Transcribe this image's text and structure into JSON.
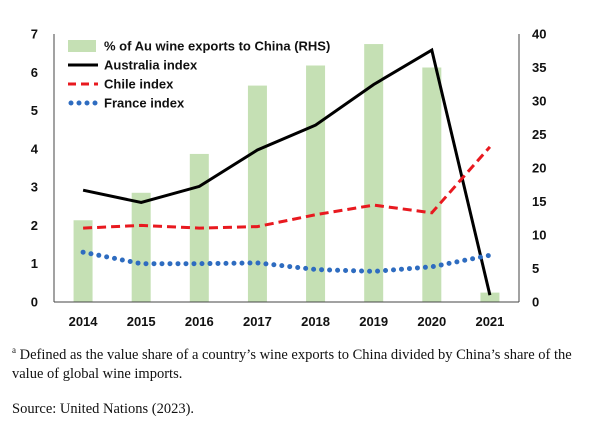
{
  "chart_data": {
    "type": "bar+line",
    "categories": [
      "2014",
      "2015",
      "2016",
      "2017",
      "2018",
      "2019",
      "2020",
      "2021"
    ],
    "left_axis": {
      "ylim": [
        0,
        7
      ],
      "ticks": [
        0,
        1,
        2,
        3,
        4,
        5,
        6,
        7
      ]
    },
    "right_axis": {
      "ylim": [
        0,
        40
      ],
      "ticks": [
        0,
        5,
        10,
        15,
        20,
        25,
        30,
        35,
        40
      ]
    },
    "bars": {
      "name": "% of Au wine exports to China (RHS)",
      "axis": "right",
      "color": "#c5e0b4",
      "values": [
        12.2,
        16.3,
        22.1,
        32.3,
        35.3,
        38.5,
        35.0,
        1.4
      ]
    },
    "series": [
      {
        "name": "Australia index",
        "axis": "left",
        "color": "#000000",
        "style": "solid",
        "values": [
          2.92,
          2.6,
          3.02,
          3.97,
          4.62,
          5.68,
          6.58,
          0.18
        ]
      },
      {
        "name": "Chile index",
        "axis": "left",
        "color": "#e8191f",
        "style": "dashed",
        "values": [
          1.93,
          2.0,
          1.93,
          1.97,
          2.28,
          2.53,
          2.33,
          4.05
        ]
      },
      {
        "name": "France index",
        "axis": "left",
        "color": "#2e6cc0",
        "style": "dotted",
        "values": [
          1.3,
          1.0,
          1.0,
          1.02,
          0.85,
          0.8,
          0.92,
          1.22
        ]
      }
    ]
  },
  "footnote": {
    "marker": "a",
    "text": " Defined as the value share of a country’s wine exports to China divided by China’s share of the value of global wine imports."
  },
  "source": "Source: United Nations (2023)."
}
